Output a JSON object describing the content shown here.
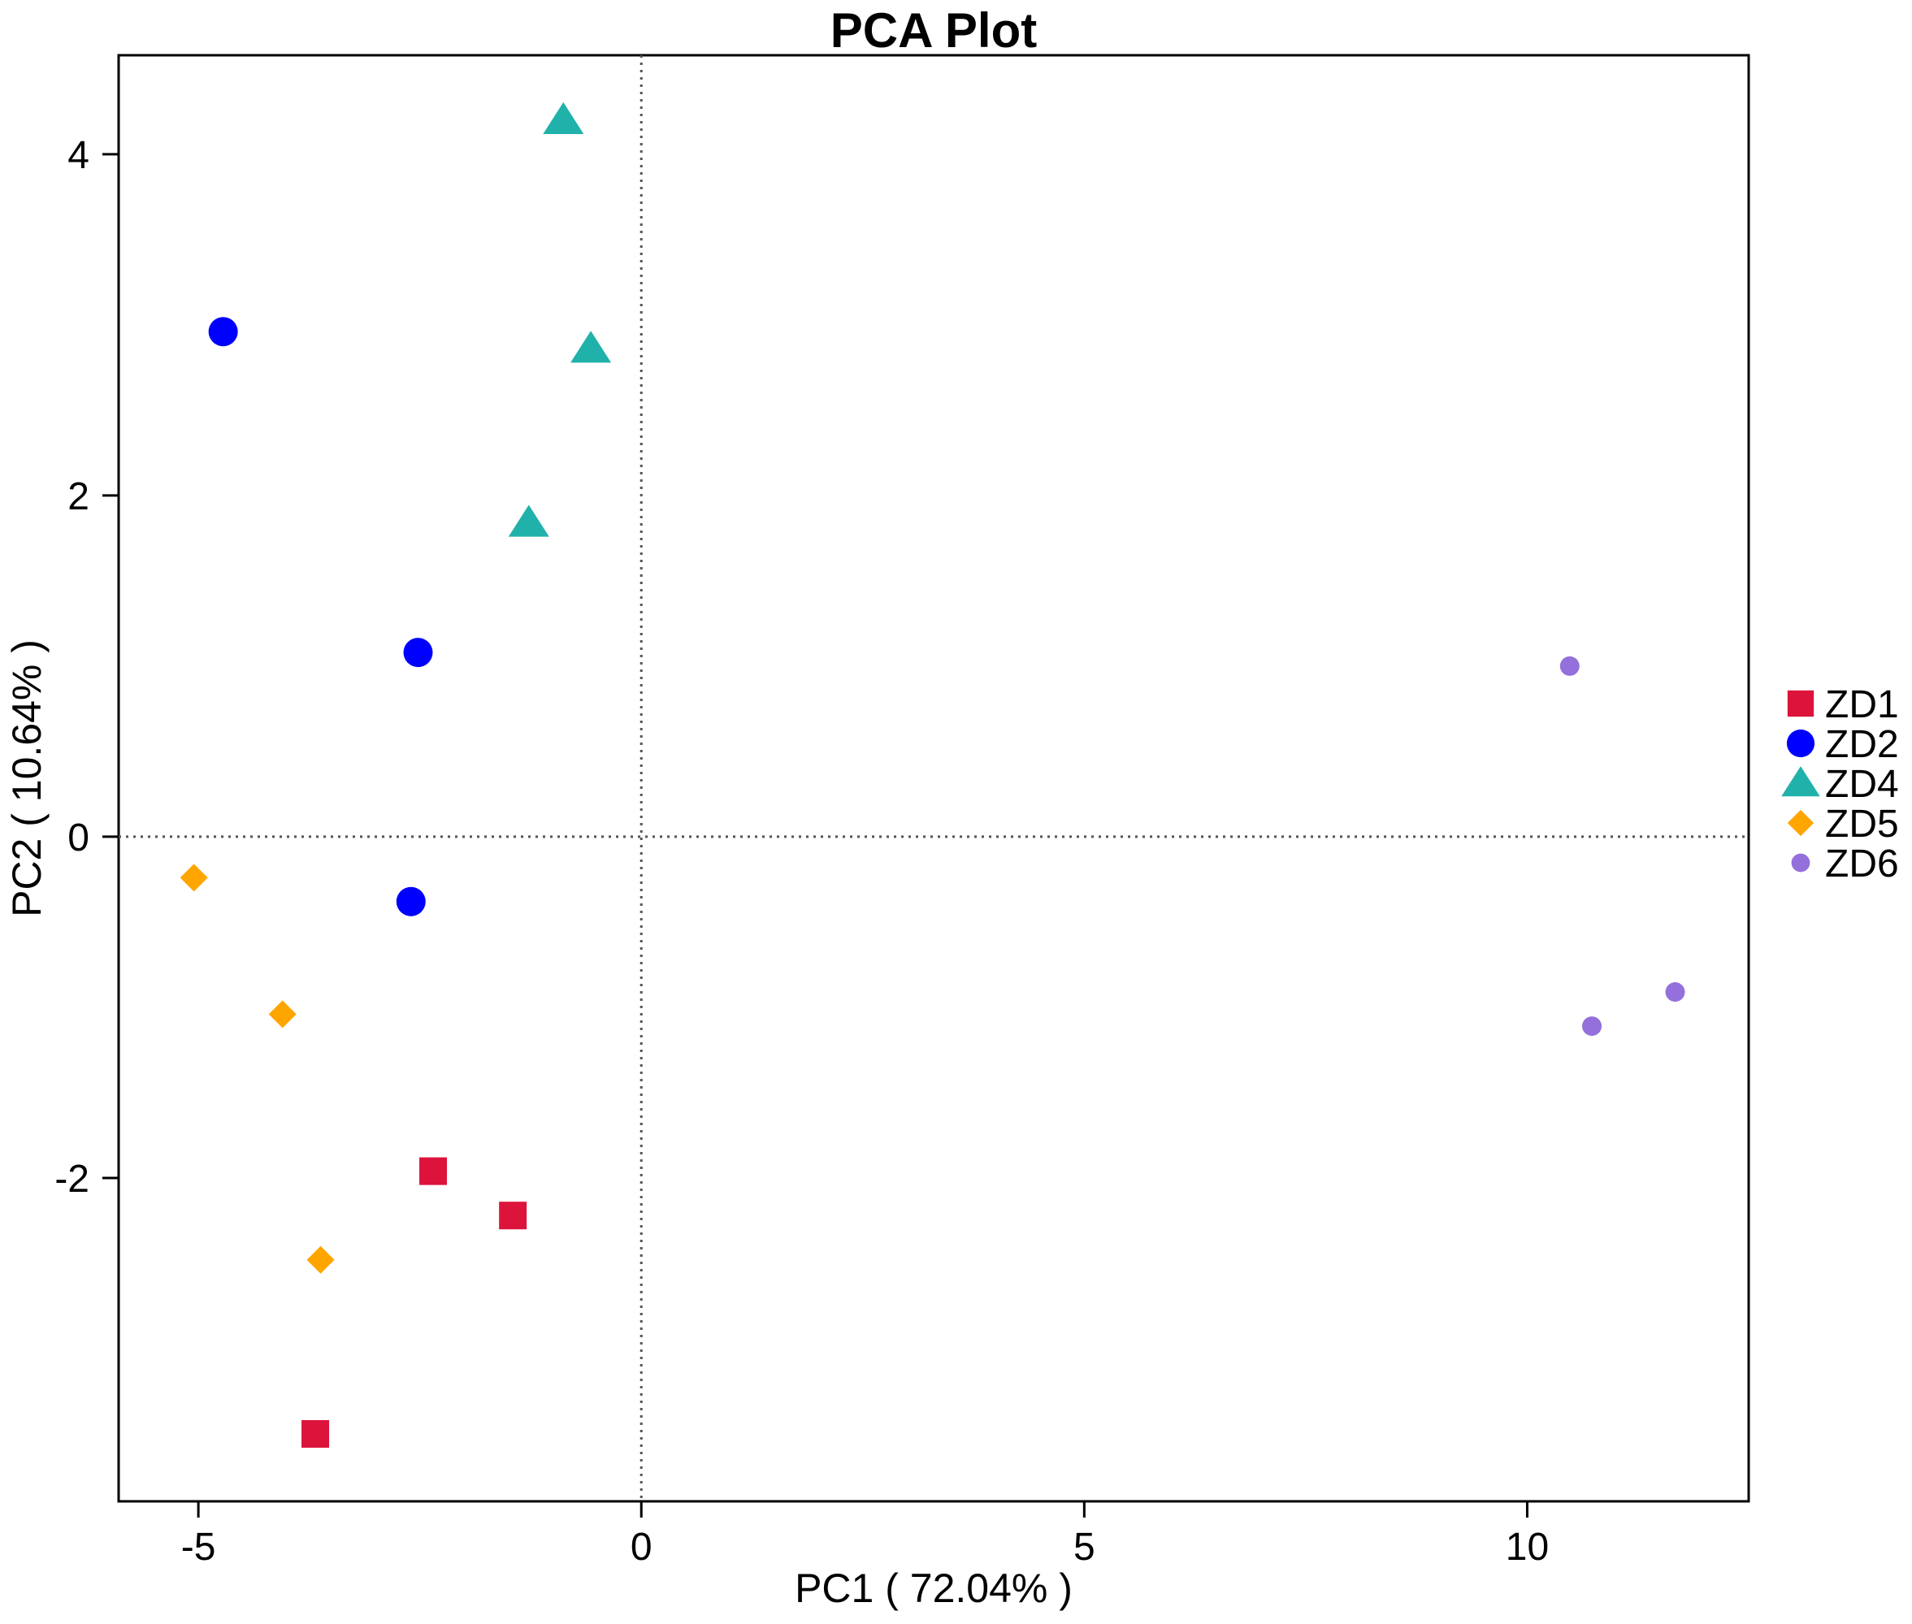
{
  "chart_data": {
    "type": "scatter",
    "title": "PCA Plot",
    "xlabel": "PC1 ( 72.04% )",
    "ylabel": "PC2 ( 10.64% )",
    "xlim": [
      -5.9,
      12.5
    ],
    "ylim": [
      -3.895,
      4.58
    ],
    "xticks": [
      -5,
      0,
      5,
      10
    ],
    "yticks": [
      -2,
      0,
      2,
      4
    ],
    "xtick_labels": [
      "-5",
      "0",
      "5",
      "10"
    ],
    "ytick_labels": [
      "-2",
      "0",
      "2",
      "4"
    ],
    "reference_lines": {
      "x": 0,
      "y": 0,
      "style": "dotted"
    },
    "grid": false,
    "legend_position": "right",
    "series": [
      {
        "name": "ZD1",
        "marker": "square",
        "color": "#DC143C",
        "points": [
          [
            -2.35,
            -1.96
          ],
          [
            -1.45,
            -2.22
          ],
          [
            -3.68,
            -3.5
          ]
        ]
      },
      {
        "name": "ZD2",
        "marker": "circle",
        "color": "#0000FF",
        "points": [
          [
            -4.72,
            2.96
          ],
          [
            -2.52,
            1.08
          ],
          [
            -2.6,
            -0.38
          ]
        ]
      },
      {
        "name": "ZD4",
        "marker": "triangle",
        "color": "#20B2AA",
        "points": [
          [
            -0.88,
            4.2
          ],
          [
            -0.57,
            2.86
          ],
          [
            -1.27,
            1.84
          ]
        ]
      },
      {
        "name": "ZD5",
        "marker": "diamond",
        "color": "#FFA500",
        "points": [
          [
            -5.05,
            -0.24
          ],
          [
            -4.05,
            -1.04
          ],
          [
            -3.62,
            -2.48
          ]
        ]
      },
      {
        "name": "ZD6",
        "marker": "small-circle",
        "color": "#9370DB",
        "points": [
          [
            10.48,
            1.0
          ],
          [
            10.73,
            -1.11
          ],
          [
            11.67,
            -0.91
          ]
        ]
      }
    ]
  }
}
